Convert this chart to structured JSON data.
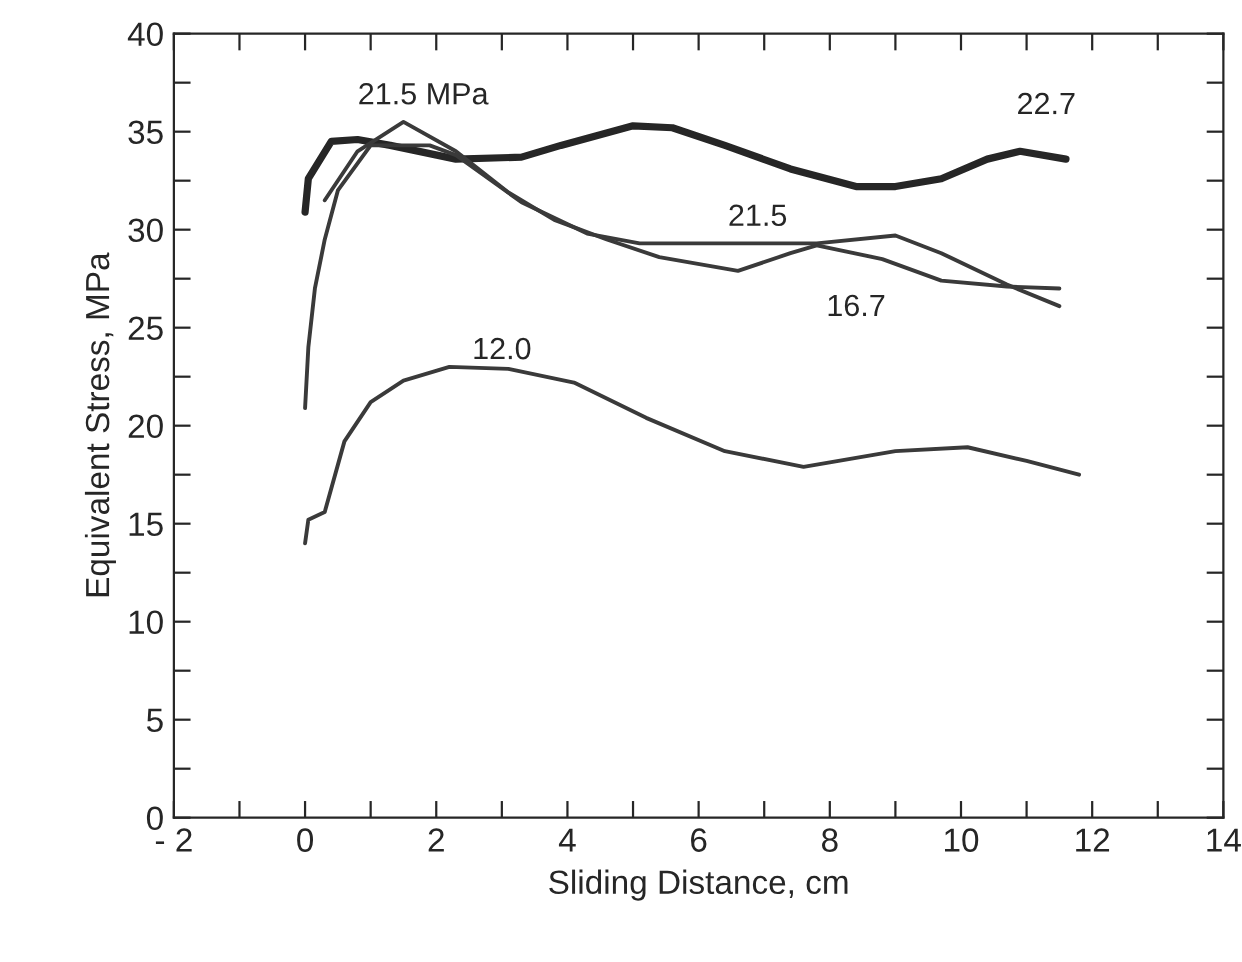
{
  "chart_data": {
    "type": "line",
    "xlabel": "Sliding Distance, cm",
    "ylabel": "Equivalent Stress, MPa",
    "xlim": [
      -2,
      14
    ],
    "ylim": [
      0,
      40
    ],
    "xticks": [
      {
        "value": -2,
        "label": "- 2"
      },
      {
        "value": -1,
        "label": null
      },
      0,
      {
        "value": 1,
        "label": null
      },
      2,
      {
        "value": 3,
        "label": null
      },
      4,
      {
        "value": 5,
        "label": null
      },
      6,
      {
        "value": 7,
        "label": null
      },
      8,
      {
        "value": 9,
        "label": null
      },
      10,
      {
        "value": 11,
        "label": null
      },
      12,
      {
        "value": 13,
        "label": null
      },
      14
    ],
    "yticks": [
      0,
      {
        "value": 2.5,
        "label": null
      },
      5,
      {
        "value": 7.5,
        "label": null
      },
      10,
      {
        "value": 12.5,
        "label": null
      },
      15,
      {
        "value": 17.5,
        "label": null
      },
      20,
      {
        "value": 22.5,
        "label": null
      },
      25,
      {
        "value": 27.5,
        "label": null
      },
      30,
      {
        "value": 32.5,
        "label": null
      },
      35,
      {
        "value": 37.5,
        "label": null
      },
      40
    ],
    "grid": false,
    "legend": false,
    "marker": "none",
    "line_style": "solid",
    "series": [
      {
        "color": "#262626",
        "x": [
          0,
          0.05,
          0.4,
          0.8,
          1.3,
          2.3,
          3.3,
          3.9,
          5.0,
          5.6,
          6.4,
          7.4,
          8.4,
          9.0,
          9.7,
          10.4,
          10.9,
          11.6
        ],
        "values": [
          30.9,
          32.6,
          34.5,
          34.6,
          34.3,
          33.6,
          33.7,
          34.3,
          35.3,
          35.2,
          34.3,
          33.1,
          32.2,
          32.2,
          32.6,
          33.6,
          34.0,
          33.6
        ]
      },
      {
        "color": "#3a3a3a",
        "x": [
          0.3,
          0.8,
          1.5,
          2.3,
          3.1,
          3.8,
          4.6,
          5.4,
          6.6,
          7.4,
          7.8,
          8.8,
          9.7,
          10.7,
          11.5
        ],
        "values": [
          31.5,
          34.0,
          35.5,
          34.0,
          31.9,
          30.5,
          29.5,
          28.6,
          27.9,
          28.8,
          29.2,
          28.5,
          27.4,
          27.1,
          27.0
        ]
      },
      {
        "color": "#3a3a3a",
        "x": [
          0,
          0.05,
          0.15,
          0.3,
          0.5,
          1.0,
          1.9,
          2.3,
          3.3,
          4.3,
          5.1,
          6.3,
          7.8,
          9.0,
          9.7,
          10.7,
          11.5
        ],
        "values": [
          20.9,
          24.0,
          27.0,
          29.5,
          32.0,
          34.3,
          34.3,
          33.8,
          31.4,
          29.8,
          29.3,
          29.3,
          29.3,
          29.7,
          28.8,
          27.2,
          26.1
        ]
      },
      {
        "color": "#3a3a3a",
        "x": [
          0,
          0.05,
          0.3,
          0.6,
          1.0,
          1.5,
          2.2,
          3.1,
          4.1,
          5.2,
          6.4,
          7.6,
          9.0,
          10.1,
          11.0,
          11.8
        ],
        "values": [
          14.0,
          15.2,
          15.6,
          19.2,
          21.2,
          22.3,
          23.0,
          22.9,
          22.2,
          20.4,
          18.7,
          17.9,
          18.7,
          18.9,
          18.2,
          17.5
        ]
      }
    ],
    "annotations": [
      "21.5 MPa",
      "22.7",
      "21.5",
      "16.7",
      "12.0"
    ]
  }
}
